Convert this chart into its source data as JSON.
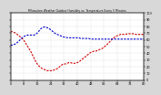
{
  "title": "Milwaukee Weather Outdoor Humidity vs. Temperature Every 5 Minutes",
  "bg_color": "#d8d8d8",
  "plot_bg": "#ffffff",
  "red_line_color": "#cc0000",
  "blue_line_color": "#0000cc",
  "red_y": [
    72,
    72,
    71,
    70,
    68,
    66,
    64,
    62,
    59,
    55,
    51,
    47,
    43,
    38,
    33,
    28,
    24,
    21,
    19,
    17,
    16,
    15,
    14,
    14,
    14,
    14,
    15,
    16,
    17,
    19,
    21,
    23,
    24,
    24,
    25,
    26,
    26,
    25,
    25,
    25,
    26,
    27,
    29,
    31,
    33,
    35,
    37,
    39,
    41,
    42,
    43,
    43,
    44,
    45,
    46,
    47,
    49,
    51,
    53,
    56,
    58,
    61,
    63,
    65,
    66,
    67,
    68,
    68,
    68,
    68,
    69,
    69,
    69,
    69,
    69,
    68,
    68,
    68,
    68,
    68,
    68
  ],
  "blue_y": [
    52,
    52,
    53,
    54,
    56,
    58,
    61,
    63,
    65,
    66,
    67,
    67,
    67,
    67,
    67,
    68,
    70,
    73,
    76,
    78,
    79,
    79,
    78,
    77,
    75,
    73,
    71,
    69,
    68,
    67,
    66,
    65,
    64,
    64,
    63,
    63,
    63,
    63,
    63,
    63,
    63,
    63,
    62,
    62,
    62,
    62,
    62,
    62,
    61,
    61,
    61,
    61,
    61,
    61,
    61,
    61,
    61,
    61,
    61,
    61,
    61,
    61,
    61,
    61,
    61,
    61,
    61,
    61,
    61,
    61,
    61,
    61,
    61,
    61,
    61,
    61,
    61,
    61,
    61,
    61,
    61
  ],
  "ylim": [
    0,
    100
  ],
  "xlim": [
    0,
    80
  ],
  "grid_color": "#aaaaaa",
  "ytick_interval": 10,
  "xtick_interval": 8
}
